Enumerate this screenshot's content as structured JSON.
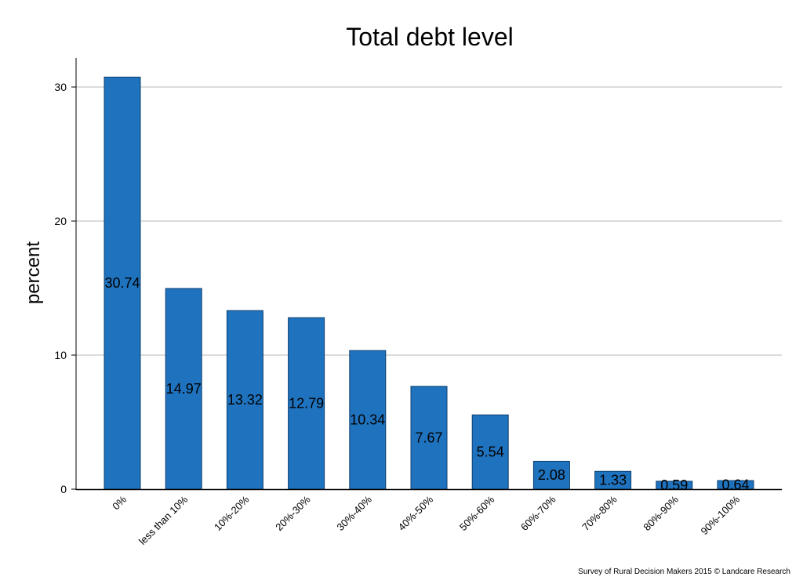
{
  "chart_data": {
    "type": "bar",
    "title": "Total debt level",
    "xlabel": "",
    "ylabel": "percent",
    "categories": [
      "0%",
      "less than 10%",
      "10%-20%",
      "20%-30%",
      "30%-40%",
      "40%-50%",
      "50%-60%",
      "60%-70%",
      "70%-80%",
      "80%-90%",
      "90%-100%"
    ],
    "values": [
      30.74,
      14.97,
      13.32,
      12.79,
      10.34,
      7.67,
      5.54,
      2.08,
      1.33,
      0.59,
      0.64
    ],
    "data_labels": [
      "30.74",
      "14.97",
      "13.32",
      "12.79",
      "10.34",
      "7.67",
      "5.54",
      "2.08",
      "1.33",
      "0.59",
      "0.64"
    ],
    "ylim": [
      0,
      32
    ],
    "yticks": [
      0,
      10,
      20,
      30
    ],
    "grid": true,
    "bar_color": "#1f73be",
    "bar_edge_color": "#0d3f6e",
    "grid_color": "#d0d0d0"
  },
  "footer": {
    "credit": "Survey of Rural Decision Makers 2015 © Landcare Research"
  }
}
